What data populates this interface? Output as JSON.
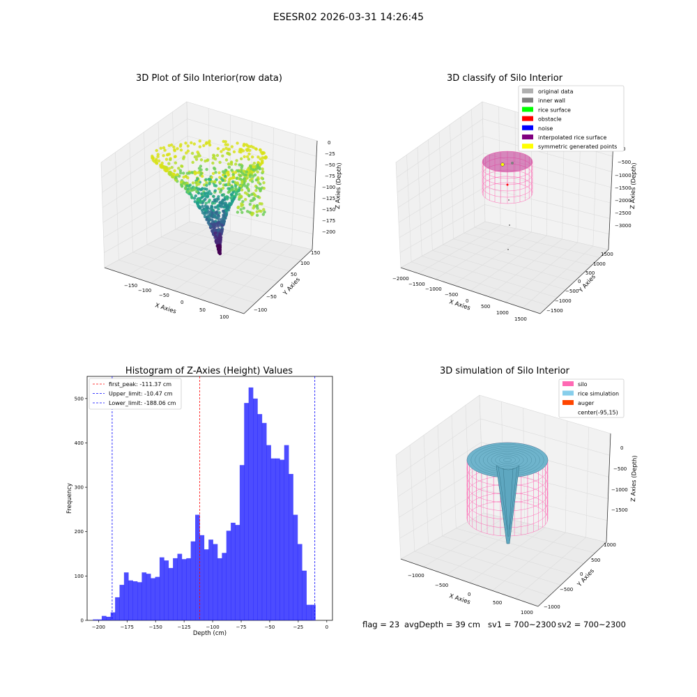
{
  "suptitle": "ESESR02 2026-03-31 14:26:45",
  "panel_raw": {
    "title": "3D Plot of Silo Interior(row data)",
    "xlabel": "X Axies",
    "ylabel": "Y Axies",
    "zlabel": "Z Axies (Depth)",
    "xticks": [
      "−150",
      "−100",
      "−50",
      "0",
      "50",
      "100"
    ],
    "yticks": [
      "150",
      "100",
      "50",
      "0",
      "−50",
      "−100"
    ],
    "zticks": [
      "0",
      "−25",
      "−50",
      "−75",
      "−100",
      "−125",
      "−150",
      "−175",
      "−200"
    ]
  },
  "panel_classify": {
    "title": "3D classify of Silo Interior",
    "xlabel": "X Axies",
    "ylabel": "Y Axies",
    "zlabel": "Z Axies (Depth)",
    "xticks": [
      "−2000",
      "−1500",
      "−1000",
      "−500",
      "0",
      "500",
      "1000",
      "1500"
    ],
    "yticks": [
      "1500",
      "1000",
      "500",
      "0",
      "−500",
      "−1000",
      "−1500"
    ],
    "zticks": [
      "0",
      "−500",
      "−1000",
      "−1500",
      "−2000",
      "−2500",
      "−3000"
    ],
    "legend": [
      {
        "label": "original data",
        "color": "#b0b0b0"
      },
      {
        "label": "inner wall",
        "color": "#808080"
      },
      {
        "label": "rice surface",
        "color": "#00ff00"
      },
      {
        "label": "obstacle",
        "color": "#ff0000"
      },
      {
        "label": "noise",
        "color": "#0000ff"
      },
      {
        "label": "interpolated rice surface",
        "color": "#800080"
      },
      {
        "label": "symmetric generated points",
        "color": "#ffff00"
      }
    ]
  },
  "panel_sim": {
    "title": "3D simulation of Silo Interior",
    "xlabel": "X Axies",
    "ylabel": "Y Axies",
    "zlabel": "Z Axies (Depth)",
    "xticks": [
      "−1000",
      "−500",
      "0",
      "500",
      "1000"
    ],
    "yticks": [
      "1000",
      "500",
      "0",
      "−500",
      "−1000"
    ],
    "zticks": [
      "0",
      "−500",
      "−1000",
      "−1500"
    ],
    "legend": [
      {
        "label": "silo",
        "color": "#ff69b4"
      },
      {
        "label": "rice simulation",
        "color": "#87ceeb"
      },
      {
        "label": "auger",
        "color": "#ff4500"
      },
      {
        "label": "center(-95,15)",
        "color": ""
      }
    ]
  },
  "footer": {
    "flag": "flag = 23",
    "avg": "avgDepth = 39 cm",
    "sv1": "sv1 = 700~2300",
    "sv2": "sv2 = 700~2300"
  },
  "chart_data": [
    {
      "type": "bar",
      "title": "Histogram of Z-Axies (Height) Values",
      "xlabel": "Depth (cm)",
      "ylabel": "Frequency",
      "xlim": [
        -210,
        5
      ],
      "ylim": [
        0,
        550
      ],
      "xticks": [
        "−200",
        "−175",
        "−150",
        "−125",
        "−100",
        "−75",
        "−50",
        "−25",
        "0"
      ],
      "yticks": [
        "0",
        "100",
        "200",
        "300",
        "400",
        "500"
      ],
      "bar_color": "#0000ff",
      "bin_width": 3.9,
      "bin_start": -205.0,
      "values": [
        2,
        2,
        10,
        8,
        18,
        52,
        80,
        108,
        90,
        88,
        86,
        108,
        105,
        95,
        98,
        142,
        135,
        118,
        140,
        150,
        138,
        140,
        178,
        238,
        192,
        160,
        182,
        172,
        140,
        152,
        202,
        220,
        215,
        350,
        490,
        525,
        500,
        465,
        445,
        395,
        365,
        365,
        362,
        395,
        330,
        238,
        172,
        112,
        35,
        35
      ],
      "vlines": [
        {
          "x": -111.37,
          "color": "#ff0000",
          "label": "first_peak: -111.37 cm"
        },
        {
          "x": -10.47,
          "color": "#0000ff",
          "label": "Upper_limit: -10.47 cm"
        },
        {
          "x": -188.06,
          "color": "#0000ff",
          "label": "Lower_limit: -188.06 cm"
        }
      ]
    }
  ]
}
